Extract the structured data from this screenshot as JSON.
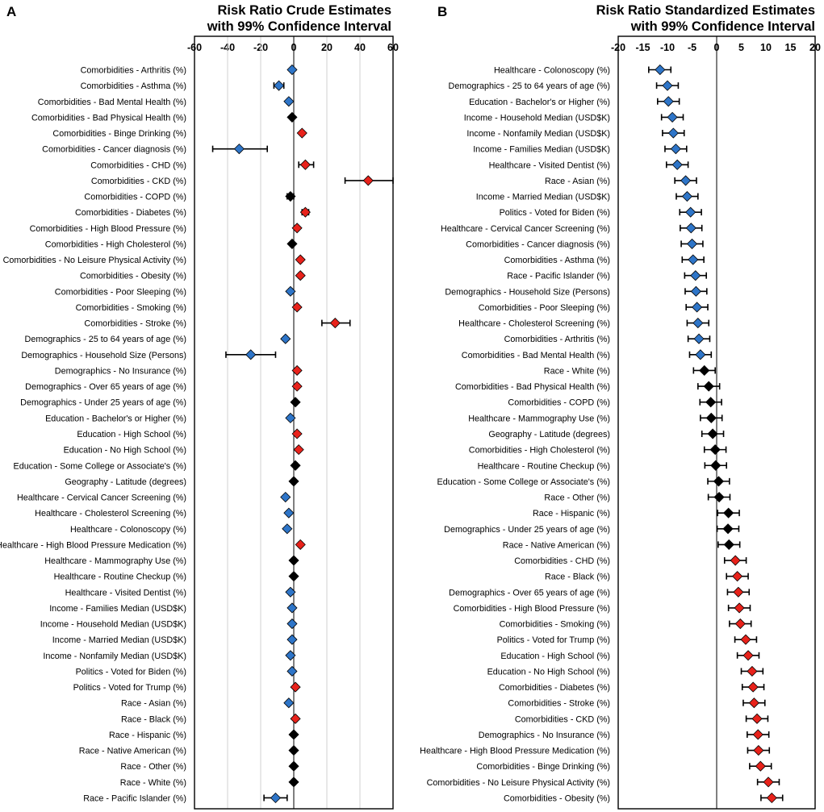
{
  "colors": {
    "negative": "#2E75C8",
    "positive": "#E8221B",
    "neutral": "#000000",
    "grid": "#d0d0d0"
  },
  "chart_data": [
    {
      "type": "forest",
      "panel": "A",
      "title_line1": "Risk Ratio Crude Estimates",
      "title_line2": "with 99% Confidence Interval",
      "xlim": [
        -60,
        60
      ],
      "ticks": [
        -60,
        -40,
        -20,
        0,
        20,
        40,
        60
      ],
      "gridlines": [
        -40,
        -20,
        20,
        40
      ],
      "rows": [
        {
          "label": "Comorbidities - Arthritis (%)",
          "est": -1,
          "lo": -2,
          "hi": 0,
          "sig": "neg"
        },
        {
          "label": "Comorbidities - Asthma (%)",
          "est": -9,
          "lo": -12,
          "hi": -6,
          "sig": "neg"
        },
        {
          "label": "Comorbidities - Bad Mental Health (%)",
          "est": -3,
          "lo": -4,
          "hi": -2,
          "sig": "neg"
        },
        {
          "label": "Comorbidities - Bad Physical Health (%)",
          "est": -1,
          "lo": -2,
          "hi": 0,
          "sig": "ns"
        },
        {
          "label": "Comorbidities - Binge Drinking (%)",
          "est": 5,
          "lo": 4,
          "hi": 6,
          "sig": "pos"
        },
        {
          "label": "Comorbidities - Cancer diagnosis (%)",
          "est": -33,
          "lo": -49,
          "hi": -16,
          "sig": "neg"
        },
        {
          "label": "Comorbidities - CHD (%)",
          "est": 7,
          "lo": 3,
          "hi": 12,
          "sig": "pos"
        },
        {
          "label": "Comorbidities - CKD (%)",
          "est": 45,
          "lo": 31,
          "hi": 60,
          "sig": "pos"
        },
        {
          "label": "Comorbidities - COPD (%)",
          "est": -2,
          "lo": -4,
          "hi": 0,
          "sig": "ns"
        },
        {
          "label": "Comorbidities - Diabetes (%)",
          "est": 7,
          "lo": 5,
          "hi": 9,
          "sig": "pos"
        },
        {
          "label": "Comorbidities - High Blood Pressure (%)",
          "est": 2,
          "lo": 1,
          "hi": 3,
          "sig": "pos"
        },
        {
          "label": "Comorbidities - High Cholesterol (%)",
          "est": -1,
          "lo": -2,
          "hi": 0,
          "sig": "ns"
        },
        {
          "label": "Comorbidities - No Leisure Physical Activity (%)",
          "est": 4,
          "lo": 3,
          "hi": 5,
          "sig": "pos"
        },
        {
          "label": "Comorbidities - Obesity (%)",
          "est": 4,
          "lo": 3,
          "hi": 5,
          "sig": "pos"
        },
        {
          "label": "Comorbidities - Poor Sleeping (%)",
          "est": -2,
          "lo": -3,
          "hi": -1,
          "sig": "neg"
        },
        {
          "label": "Comorbidities - Smoking (%)",
          "est": 2,
          "lo": 1,
          "hi": 3,
          "sig": "pos"
        },
        {
          "label": "Comorbidities - Stroke (%)",
          "est": 25,
          "lo": 17,
          "hi": 34,
          "sig": "pos"
        },
        {
          "label": "Demographics - 25 to 64 years of age (%)",
          "est": -5,
          "lo": -6,
          "hi": -4,
          "sig": "neg"
        },
        {
          "label": "Demographics - Household Size (Persons)",
          "est": -26,
          "lo": -41,
          "hi": -11,
          "sig": "neg"
        },
        {
          "label": "Demographics - No Insurance (%)",
          "est": 2,
          "lo": 1,
          "hi": 3,
          "sig": "pos"
        },
        {
          "label": "Demographics - Over 65 years of age (%)",
          "est": 2,
          "lo": 1,
          "hi": 3,
          "sig": "pos"
        },
        {
          "label": "Demographics - Under 25 years of age (%)",
          "est": 1,
          "lo": 0,
          "hi": 2,
          "sig": "ns"
        },
        {
          "label": "Education - Bachelor's or Higher (%)",
          "est": -2,
          "lo": -3,
          "hi": -1,
          "sig": "neg"
        },
        {
          "label": "Education - High School (%)",
          "est": 2,
          "lo": 1,
          "hi": 3,
          "sig": "pos"
        },
        {
          "label": "Education - No High School (%)",
          "est": 3,
          "lo": 2,
          "hi": 4,
          "sig": "pos"
        },
        {
          "label": "Education - Some College or Associate's (%)",
          "est": 1,
          "lo": 0,
          "hi": 2,
          "sig": "ns"
        },
        {
          "label": "Geography - Latitude (degrees)",
          "est": 0,
          "lo": -1,
          "hi": 1,
          "sig": "ns"
        },
        {
          "label": "Healthcare - Cervical Cancer Screening  (%)",
          "est": -5,
          "lo": -6,
          "hi": -4,
          "sig": "neg"
        },
        {
          "label": "Healthcare - Cholesterol Screening (%)",
          "est": -3,
          "lo": -4,
          "hi": -2,
          "sig": "neg"
        },
        {
          "label": "Healthcare - Colonoscopy (%)",
          "est": -4,
          "lo": -5,
          "hi": -3,
          "sig": "neg"
        },
        {
          "label": "Healthcare - High Blood Pressure Medication (%)",
          "est": 4,
          "lo": 3,
          "hi": 5,
          "sig": "pos"
        },
        {
          "label": "Healthcare - Mammography Use (%)",
          "est": 0,
          "lo": -1,
          "hi": 1,
          "sig": "ns"
        },
        {
          "label": "Healthcare - Routine Checkup (%)",
          "est": 0,
          "lo": -1,
          "hi": 1,
          "sig": "ns"
        },
        {
          "label": "Healthcare - Visited Dentist (%)",
          "est": -2,
          "lo": -3,
          "hi": -1,
          "sig": "neg"
        },
        {
          "label": "Income - Families Median (USD$K)",
          "est": -1,
          "lo": -2,
          "hi": 0,
          "sig": "neg"
        },
        {
          "label": "Income - Household Median (USD$K)",
          "est": -1,
          "lo": -2,
          "hi": 0,
          "sig": "neg"
        },
        {
          "label": "Income - Married Median (USD$K)",
          "est": -1,
          "lo": -2,
          "hi": 0,
          "sig": "neg"
        },
        {
          "label": "Income - Nonfamily Median (USD$K)",
          "est": -2,
          "lo": -3,
          "hi": -1,
          "sig": "neg"
        },
        {
          "label": "Politics - Voted for Biden (%)",
          "est": -1,
          "lo": -2,
          "hi": 0,
          "sig": "neg"
        },
        {
          "label": "Politics - Voted for Trump (%)",
          "est": 1,
          "lo": 0,
          "hi": 2,
          "sig": "pos"
        },
        {
          "label": "Race - Asian (%)",
          "est": -3,
          "lo": -4,
          "hi": -2,
          "sig": "neg"
        },
        {
          "label": "Race - Black (%)",
          "est": 1,
          "lo": 0,
          "hi": 2,
          "sig": "pos"
        },
        {
          "label": "Race - Hispanic (%)",
          "est": 0,
          "lo": -1,
          "hi": 1,
          "sig": "ns"
        },
        {
          "label": "Race - Native American (%)",
          "est": 0,
          "lo": -1,
          "hi": 1,
          "sig": "ns"
        },
        {
          "label": "Race - Other (%)",
          "est": 0,
          "lo": -1,
          "hi": 1,
          "sig": "ns"
        },
        {
          "label": "Race - White (%)",
          "est": 0,
          "lo": -1,
          "hi": 1,
          "sig": "ns"
        },
        {
          "label": "Race - Pacific Islander (%)",
          "est": -11,
          "lo": -18,
          "hi": -4,
          "sig": "neg"
        }
      ]
    },
    {
      "type": "forest",
      "panel": "B",
      "title_line1": "Risk Ratio Standardized Estimates",
      "title_line2": "with 99% Confidence Interval",
      "xlim": [
        -20,
        20
      ],
      "ticks": [
        -20,
        -15,
        -10,
        -5,
        0,
        5,
        10,
        15,
        20
      ],
      "gridlines": [],
      "rows": [
        {
          "label": "Healthcare - Colonoscopy (%)",
          "est": -11.5,
          "lo": -13.8,
          "hi": -9.3,
          "sig": "neg"
        },
        {
          "label": "Demographics - 25 to 64 years of age (%)",
          "est": -10,
          "lo": -12.2,
          "hi": -7.8,
          "sig": "neg"
        },
        {
          "label": "Education - Bachelor's or Higher (%)",
          "est": -9.8,
          "lo": -12,
          "hi": -7.6,
          "sig": "neg"
        },
        {
          "label": "Income - Household Median (USD$K)",
          "est": -9,
          "lo": -11.2,
          "hi": -6.8,
          "sig": "neg"
        },
        {
          "label": "Income - Nonfamily Median (USD$K)",
          "est": -8.8,
          "lo": -11,
          "hi": -6.6,
          "sig": "neg"
        },
        {
          "label": "Income - Families Median (USD$K)",
          "est": -8.3,
          "lo": -10.5,
          "hi": -6.1,
          "sig": "neg"
        },
        {
          "label": "Healthcare - Visited Dentist (%)",
          "est": -8,
          "lo": -10.2,
          "hi": -5.8,
          "sig": "neg"
        },
        {
          "label": "Race - Asian (%)",
          "est": -6.3,
          "lo": -8.5,
          "hi": -4.1,
          "sig": "neg"
        },
        {
          "label": "Income - Married Median (USD$K)",
          "est": -6,
          "lo": -8.2,
          "hi": -3.8,
          "sig": "neg"
        },
        {
          "label": "Politics - Voted for Biden (%)",
          "est": -5.3,
          "lo": -7.5,
          "hi": -3.1,
          "sig": "neg"
        },
        {
          "label": "Healthcare - Cervical Cancer Screening  (%)",
          "est": -5.2,
          "lo": -7.4,
          "hi": -3,
          "sig": "neg"
        },
        {
          "label": "Comorbidities - Cancer diagnosis (%)",
          "est": -5,
          "lo": -7.2,
          "hi": -2.8,
          "sig": "neg"
        },
        {
          "label": "Comorbidities - Asthma (%)",
          "est": -4.8,
          "lo": -7,
          "hi": -2.6,
          "sig": "neg"
        },
        {
          "label": "Race - Pacific Islander (%)",
          "est": -4.3,
          "lo": -6.5,
          "hi": -2.1,
          "sig": "neg"
        },
        {
          "label": "Demographics - Household Size (Persons)",
          "est": -4.2,
          "lo": -6.4,
          "hi": -2,
          "sig": "neg"
        },
        {
          "label": "Comorbidities - Poor Sleeping (%)",
          "est": -4,
          "lo": -6.2,
          "hi": -1.8,
          "sig": "neg"
        },
        {
          "label": "Healthcare - Cholesterol Screening (%)",
          "est": -3.8,
          "lo": -6,
          "hi": -1.6,
          "sig": "neg"
        },
        {
          "label": "Comorbidities - Arthritis (%)",
          "est": -3.6,
          "lo": -5.8,
          "hi": -1.4,
          "sig": "neg"
        },
        {
          "label": "Comorbidities - Bad Mental Health (%)",
          "est": -3.3,
          "lo": -5.5,
          "hi": -1.1,
          "sig": "neg"
        },
        {
          "label": "Race - White (%)",
          "est": -2.5,
          "lo": -4.7,
          "hi": -0.3,
          "sig": "ns"
        },
        {
          "label": "Comorbidities - Bad Physical Health (%)",
          "est": -1.6,
          "lo": -3.8,
          "hi": 0.6,
          "sig": "ns"
        },
        {
          "label": "Comorbidities - COPD (%)",
          "est": -1.2,
          "lo": -3.4,
          "hi": 1,
          "sig": "ns"
        },
        {
          "label": "Healthcare - Mammography Use (%)",
          "est": -1.1,
          "lo": -3.3,
          "hi": 1.1,
          "sig": "ns"
        },
        {
          "label": "Geography - Latitude (degrees)",
          "est": -0.8,
          "lo": -3,
          "hi": 1.4,
          "sig": "ns"
        },
        {
          "label": "Comorbidities - High Cholesterol (%)",
          "est": -0.3,
          "lo": -2.5,
          "hi": 1.9,
          "sig": "ns"
        },
        {
          "label": "Healthcare - Routine Checkup (%)",
          "est": -0.2,
          "lo": -2.4,
          "hi": 2,
          "sig": "ns"
        },
        {
          "label": "Education - Some College or Associate's (%)",
          "est": 0.4,
          "lo": -1.8,
          "hi": 2.6,
          "sig": "ns"
        },
        {
          "label": "Race - Other (%)",
          "est": 0.5,
          "lo": -1.7,
          "hi": 2.7,
          "sig": "ns"
        },
        {
          "label": "Race - Hispanic (%)",
          "est": 2.4,
          "lo": 0.2,
          "hi": 4.6,
          "sig": "ns"
        },
        {
          "label": "Demographics - Under 25 years of age (%)",
          "est": 2.3,
          "lo": 0.1,
          "hi": 4.5,
          "sig": "ns"
        },
        {
          "label": "Race - Native American (%)",
          "est": 2.5,
          "lo": 0.3,
          "hi": 4.7,
          "sig": "ns"
        },
        {
          "label": "Comorbidities - CHD (%)",
          "est": 3.8,
          "lo": 1.6,
          "hi": 6,
          "sig": "pos"
        },
        {
          "label": "Race - Black (%)",
          "est": 4.2,
          "lo": 2,
          "hi": 6.4,
          "sig": "pos"
        },
        {
          "label": "Demographics - Over 65 years of age (%)",
          "est": 4.4,
          "lo": 2.2,
          "hi": 6.6,
          "sig": "pos"
        },
        {
          "label": "Comorbidities - High Blood Pressure (%)",
          "est": 4.6,
          "lo": 2.4,
          "hi": 6.8,
          "sig": "pos"
        },
        {
          "label": "Comorbidities - Smoking (%)",
          "est": 4.8,
          "lo": 2.6,
          "hi": 7,
          "sig": "pos"
        },
        {
          "label": "Politics - Voted for Trump (%)",
          "est": 5.9,
          "lo": 3.7,
          "hi": 8.1,
          "sig": "pos"
        },
        {
          "label": "Education - High School (%)",
          "est": 6.4,
          "lo": 4.2,
          "hi": 8.6,
          "sig": "pos"
        },
        {
          "label": "Education - No High School (%)",
          "est": 7.2,
          "lo": 5,
          "hi": 9.4,
          "sig": "pos"
        },
        {
          "label": "Comorbidities - Diabetes (%)",
          "est": 7.4,
          "lo": 5.2,
          "hi": 9.6,
          "sig": "pos"
        },
        {
          "label": "Comorbidities - Stroke (%)",
          "est": 7.6,
          "lo": 5.4,
          "hi": 9.8,
          "sig": "pos"
        },
        {
          "label": "Comorbidities - CKD (%)",
          "est": 8.2,
          "lo": 6,
          "hi": 10.4,
          "sig": "pos"
        },
        {
          "label": "Demographics - No Insurance (%)",
          "est": 8.4,
          "lo": 6.2,
          "hi": 10.6,
          "sig": "pos"
        },
        {
          "label": "Healthcare - High Blood Pressure Medication (%)",
          "est": 8.5,
          "lo": 6.3,
          "hi": 10.7,
          "sig": "pos"
        },
        {
          "label": "Comorbidities - Binge Drinking (%)",
          "est": 8.9,
          "lo": 6.7,
          "hi": 11.1,
          "sig": "pos"
        },
        {
          "label": "Comorbidities - No Leisure Physical Activity (%)",
          "est": 10.5,
          "lo": 8.3,
          "hi": 12.7,
          "sig": "pos"
        },
        {
          "label": "Comorbidities - Obesity (%)",
          "est": 11.2,
          "lo": 9,
          "hi": 13.4,
          "sig": "pos"
        }
      ]
    }
  ]
}
